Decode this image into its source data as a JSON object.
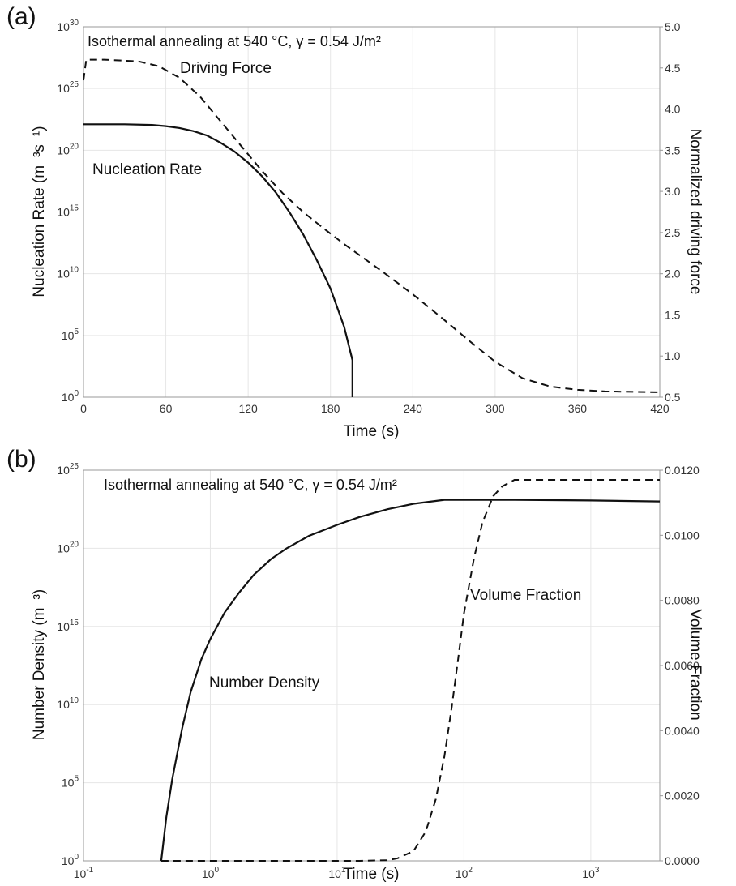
{
  "chart_data": [
    {
      "type": "line",
      "panel_label": "(a)",
      "annotation": "Isothermal annealing at 540 °C, γ = 0.54 J/m²",
      "xlabel": "Time (s)",
      "ylabel_left": "Nucleation Rate (m⁻³s⁻¹)",
      "ylabel_right": "Normalized driving force",
      "x_scale": "linear",
      "y_left_scale": "log",
      "xlim": [
        0,
        420
      ],
      "ylim_left": [
        1,
        1e+30
      ],
      "ylim_right": [
        0.5,
        5.0
      ],
      "x_ticks": [
        "0",
        "60",
        "120",
        "180",
        "240",
        "300",
        "360",
        "420"
      ],
      "y_left_ticks": [
        {
          "base": "10",
          "exp": "0"
        },
        {
          "base": "10",
          "exp": "5"
        },
        {
          "base": "10",
          "exp": "10"
        },
        {
          "base": "10",
          "exp": "15"
        },
        {
          "base": "10",
          "exp": "20"
        },
        {
          "base": "10",
          "exp": "25"
        },
        {
          "base": "10",
          "exp": "30"
        }
      ],
      "y_right_ticks": [
        "0.5",
        "1.0",
        "1.5",
        "2.0",
        "2.5",
        "3.0",
        "3.5",
        "4.0",
        "4.5",
        "5.0"
      ],
      "grid": true,
      "series": [
        {
          "name": "Nucleation Rate",
          "axis": "left",
          "style": "solid",
          "x": [
            0,
            30,
            50,
            60,
            70,
            80,
            90,
            100,
            110,
            120,
            130,
            140,
            150,
            160,
            170,
            180,
            190,
            196,
            196
          ],
          "y_log10": [
            22.1,
            22.1,
            22.05,
            21.95,
            21.8,
            21.55,
            21.2,
            20.6,
            19.9,
            19.0,
            17.9,
            16.6,
            15.0,
            13.2,
            11.1,
            8.8,
            5.7,
            3.0,
            0
          ]
        },
        {
          "name": "Driving Force",
          "axis": "right",
          "style": "dashed",
          "x": [
            0,
            2,
            15,
            40,
            55,
            70,
            85,
            100,
            115,
            130,
            145,
            160,
            175,
            190,
            205,
            220,
            240,
            260,
            280,
            300,
            320,
            340,
            360,
            380,
            420
          ],
          "y": [
            4.35,
            4.6,
            4.6,
            4.58,
            4.52,
            4.38,
            4.15,
            3.85,
            3.55,
            3.25,
            2.98,
            2.75,
            2.55,
            2.36,
            2.18,
            2.0,
            1.75,
            1.48,
            1.2,
            0.93,
            0.73,
            0.63,
            0.59,
            0.57,
            0.56
          ]
        }
      ],
      "series_labels": [
        "Nucleation Rate",
        "Driving Force"
      ]
    },
    {
      "type": "line",
      "panel_label": "(b)",
      "annotation": "Isothermal annealing at 540 °C, γ = 0.54 J/m²",
      "xlabel": "Time (s)",
      "ylabel_left": "Number Density (m⁻³)",
      "ylabel_right": "Volume Fraction",
      "x_scale": "log",
      "y_left_scale": "log",
      "xlim": [
        0.1,
        3500
      ],
      "ylim_left": [
        1,
        1e+25
      ],
      "ylim_right": [
        0.0,
        0.012
      ],
      "x_ticks": [
        {
          "base": "10",
          "exp": "-1"
        },
        {
          "base": "10",
          "exp": "0"
        },
        {
          "base": "10",
          "exp": "1"
        },
        {
          "base": "10",
          "exp": "2"
        },
        {
          "base": "10",
          "exp": "3"
        }
      ],
      "y_left_ticks": [
        {
          "base": "10",
          "exp": "0"
        },
        {
          "base": "10",
          "exp": "5"
        },
        {
          "base": "10",
          "exp": "10"
        },
        {
          "base": "10",
          "exp": "15"
        },
        {
          "base": "10",
          "exp": "20"
        },
        {
          "base": "10",
          "exp": "25"
        }
      ],
      "y_right_ticks": [
        "0.0000",
        "0.0020",
        "0.0040",
        "0.0060",
        "0.0080",
        "0.0100",
        "0.0120"
      ],
      "grid": true,
      "series": [
        {
          "name": "Number Density",
          "axis": "left",
          "style": "solid",
          "x": [
            0.41,
            0.45,
            0.5,
            0.6,
            0.7,
            0.85,
            1.0,
            1.3,
            1.7,
            2.2,
            3,
            4,
            6,
            10,
            15,
            25,
            40,
            70,
            100,
            200,
            500,
            1000,
            3500
          ],
          "y_log10": [
            0,
            2.8,
            5.2,
            8.5,
            10.8,
            12.9,
            14.2,
            15.9,
            17.2,
            18.3,
            19.3,
            20.0,
            20.8,
            21.5,
            22.0,
            22.5,
            22.85,
            23.1,
            23.1,
            23.1,
            23.08,
            23.06,
            23.0
          ]
        },
        {
          "name": "Volume Fraction",
          "axis": "right",
          "style": "dashed",
          "x": [
            0.41,
            5,
            15,
            25,
            30,
            40,
            50,
            60,
            70,
            80,
            90,
            100,
            120,
            140,
            170,
            200,
            250,
            300,
            500,
            1000,
            3500
          ],
          "y": [
            0.0,
            0.0,
            0.0,
            2e-05,
            8e-05,
            0.0003,
            0.0009,
            0.0019,
            0.0032,
            0.0047,
            0.0062,
            0.0076,
            0.0093,
            0.0104,
            0.0112,
            0.0115,
            0.0117,
            0.0117,
            0.0117,
            0.0117,
            0.0117
          ]
        }
      ],
      "series_labels": [
        "Number Density",
        "Volume Fraction"
      ]
    }
  ]
}
